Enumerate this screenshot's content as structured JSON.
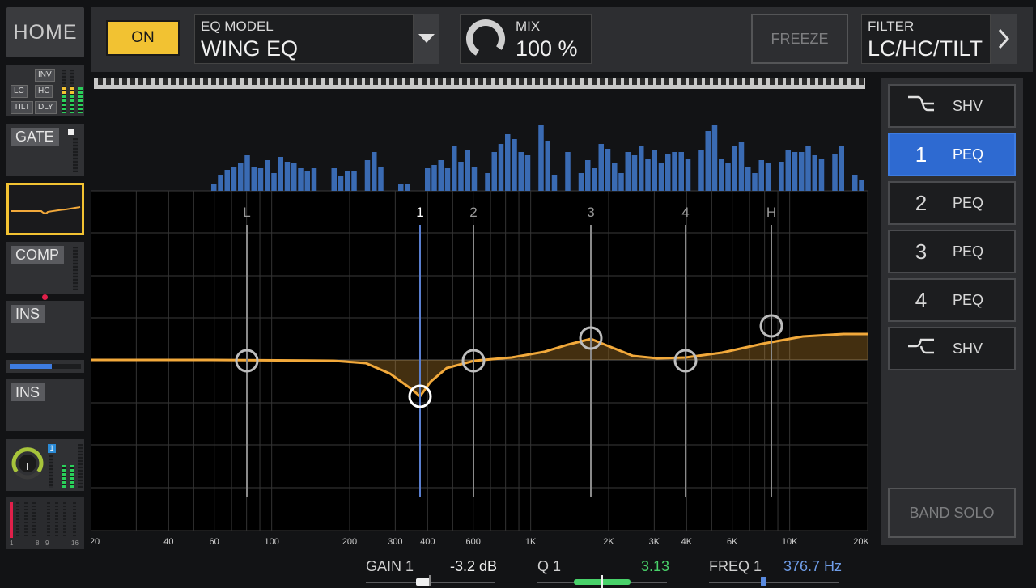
{
  "nav": {
    "home_label": "HOME"
  },
  "strips": {
    "filter_tags": {
      "inv": "INV",
      "lc": "LC",
      "hc": "HC",
      "tilt": "TILT",
      "dly": "DLY"
    },
    "gate_label": "GATE",
    "comp_label": "COMP",
    "ins1_label": "INS",
    "ins2_label": "INS",
    "bus_badge": "1",
    "meter_scale": [
      "1",
      "8",
      "9",
      "16"
    ]
  },
  "header": {
    "on_label": "ON",
    "eq_model_caption": "EQ MODEL",
    "eq_model_value": "WING EQ",
    "mix_caption": "MIX",
    "mix_value": "100 %",
    "freeze_label": "FREEZE",
    "filter_caption": "FILTER",
    "filter_value": "LC/HC/TILT"
  },
  "graph": {
    "band_markers": [
      "L",
      "1",
      "2",
      "3",
      "4",
      "H"
    ],
    "freq_ticks": [
      "20",
      "40",
      "60",
      "100",
      "200",
      "300",
      "400",
      "600",
      "1K",
      "2K",
      "3K",
      "4K",
      "6K",
      "10K",
      "20K"
    ]
  },
  "bands": [
    {
      "num": "",
      "type": "SHV",
      "icon": "low-shelf-icon",
      "active": false
    },
    {
      "num": "1",
      "type": "PEQ",
      "active": true
    },
    {
      "num": "2",
      "type": "PEQ",
      "active": false
    },
    {
      "num": "3",
      "type": "PEQ",
      "active": false
    },
    {
      "num": "4",
      "type": "PEQ",
      "active": false
    },
    {
      "num": "",
      "type": "SHV",
      "icon": "high-shelf-icon",
      "active": false
    }
  ],
  "band_solo_label": "BAND SOLO",
  "params": {
    "gain_label": "GAIN 1",
    "gain_value": "-3.2 dB",
    "q_label": "Q 1",
    "q_value": "3.13",
    "freq_label": "FREQ 1",
    "freq_value": "376.7 Hz"
  },
  "colors": {
    "accent": "#f2c232",
    "band_active": "#2e6ad1",
    "q_value": "#49d26a",
    "freq_value": "#6f9de8",
    "eq_curve": "#f2a93b"
  }
}
